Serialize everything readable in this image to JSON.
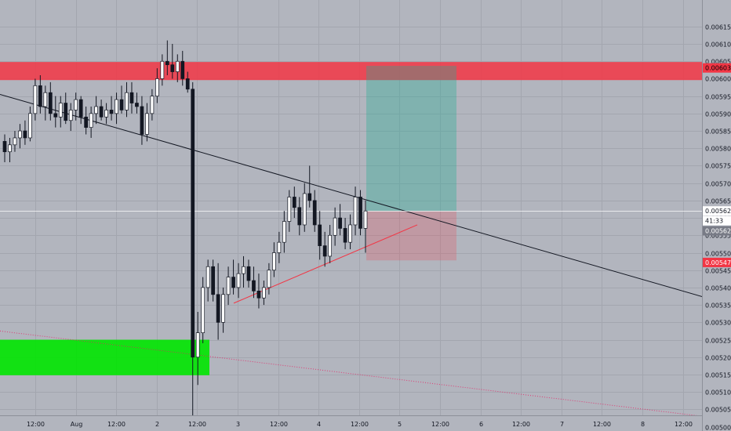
{
  "chart_data": {
    "type": "candlestick",
    "title": "",
    "y_axis": {
      "position": "right",
      "ylim": [
        0.00499,
        0.00618
      ],
      "ticks": [
        "0.006150",
        "0.006100",
        "0.006050",
        "0.006000",
        "0.005950",
        "0.005900",
        "0.005850",
        "0.005800",
        "0.005750",
        "0.005700",
        "0.005650",
        "0.005600",
        "0.005550",
        "0.005500",
        "0.005450",
        "0.005400",
        "0.005350",
        "0.005300",
        "0.005250",
        "0.005200",
        "0.005150",
        "0.005100",
        "0.005050",
        "0.005000"
      ]
    },
    "x_axis": {
      "ticks": [
        "12:00",
        "Aug",
        "12:00",
        "2",
        "12:00",
        "3",
        "12:00",
        "4",
        "12:00",
        "5",
        "12:00",
        "6",
        "12:00",
        "7",
        "12:00",
        "8",
        "12:00"
      ]
    },
    "price_tags": [
      {
        "value": "0.006031",
        "price": 0.006031,
        "color": "#f23645",
        "text_color": "#000000"
      },
      {
        "value": "0.005620",
        "price": 0.00562,
        "color": "#ffffff",
        "text_color": "#131722"
      },
      {
        "value": "41:33",
        "price": 0.005592,
        "color": "#ffffff",
        "text_color": "#131722"
      },
      {
        "value": "0.005620",
        "price": 0.005563,
        "color": "#787b86",
        "text_color": "#ffffff"
      },
      {
        "value": "0.005472",
        "price": 0.005472,
        "color": "#f23645",
        "text_color": "#ffffff"
      }
    ],
    "zones": [
      {
        "name": "resistance",
        "from": 0.005996,
        "to": 0.006048,
        "color": "#f23645"
      },
      {
        "name": "support",
        "from": 0.005148,
        "to": 0.00525,
        "color": "#00e600"
      }
    ],
    "position_tool": {
      "entry": 0.00562,
      "target": 0.006037,
      "stop": 0.005478
    },
    "trendlines": [
      {
        "name": "descending-trendline",
        "color": "#131722",
        "from": [
          0,
          0.005955
        ],
        "to": [
          932,
          0.00535
        ]
      },
      {
        "name": "ascending-trendline",
        "color": "#f23645",
        "from": [
          298,
          0.005355
        ],
        "to": [
          532,
          0.00558
        ]
      },
      {
        "name": "dotted-trendline",
        "color": "#e91e63",
        "from": [
          0,
          0.005275
        ],
        "to": [
          932,
          0.00502
        ]
      }
    ],
    "current_price": 0.00562,
    "candles": [
      {
        "t": 1,
        "o": 0.00582,
        "h": 0.00584,
        "l": 0.00576,
        "c": 0.00579
      },
      {
        "t": 2,
        "o": 0.00579,
        "h": 0.00583,
        "l": 0.00576,
        "c": 0.00581
      },
      {
        "t": 3,
        "o": 0.00581,
        "h": 0.00585,
        "l": 0.00579,
        "c": 0.00583
      },
      {
        "t": 4,
        "o": 0.00583,
        "h": 0.00587,
        "l": 0.0058,
        "c": 0.00585
      },
      {
        "t": 5,
        "o": 0.00585,
        "h": 0.00588,
        "l": 0.00581,
        "c": 0.00583
      },
      {
        "t": 6,
        "o": 0.00583,
        "h": 0.00592,
        "l": 0.00582,
        "c": 0.0059
      },
      {
        "t": 7,
        "o": 0.0059,
        "h": 0.006,
        "l": 0.00588,
        "c": 0.00598
      },
      {
        "t": 8,
        "o": 0.00598,
        "h": 0.00601,
        "l": 0.0059,
        "c": 0.00592
      },
      {
        "t": 9,
        "o": 0.00592,
        "h": 0.00598,
        "l": 0.00588,
        "c": 0.00596
      },
      {
        "t": 10,
        "o": 0.00596,
        "h": 0.00599,
        "l": 0.00588,
        "c": 0.0059
      },
      {
        "t": 11,
        "o": 0.0059,
        "h": 0.00595,
        "l": 0.00586,
        "c": 0.00589
      },
      {
        "t": 12,
        "o": 0.00589,
        "h": 0.00595,
        "l": 0.00586,
        "c": 0.00593
      },
      {
        "t": 13,
        "o": 0.00593,
        "h": 0.00596,
        "l": 0.00587,
        "c": 0.00588
      },
      {
        "t": 14,
        "o": 0.00588,
        "h": 0.00593,
        "l": 0.00585,
        "c": 0.00591
      },
      {
        "t": 15,
        "o": 0.00591,
        "h": 0.00596,
        "l": 0.00588,
        "c": 0.00594
      },
      {
        "t": 16,
        "o": 0.00594,
        "h": 0.00595,
        "l": 0.00587,
        "c": 0.00589
      },
      {
        "t": 17,
        "o": 0.00589,
        "h": 0.00592,
        "l": 0.00584,
        "c": 0.00586
      },
      {
        "t": 18,
        "o": 0.00586,
        "h": 0.00592,
        "l": 0.00583,
        "c": 0.0059
      },
      {
        "t": 19,
        "o": 0.0059,
        "h": 0.00595,
        "l": 0.00587,
        "c": 0.00592
      },
      {
        "t": 20,
        "o": 0.00592,
        "h": 0.00594,
        "l": 0.00588,
        "c": 0.00589
      },
      {
        "t": 21,
        "o": 0.00589,
        "h": 0.00593,
        "l": 0.00587,
        "c": 0.00591
      },
      {
        "t": 22,
        "o": 0.00591,
        "h": 0.00595,
        "l": 0.00588,
        "c": 0.0059
      },
      {
        "t": 23,
        "o": 0.0059,
        "h": 0.00596,
        "l": 0.00587,
        "c": 0.00594
      },
      {
        "t": 24,
        "o": 0.00594,
        "h": 0.00598,
        "l": 0.0059,
        "c": 0.00591
      },
      {
        "t": 25,
        "o": 0.00591,
        "h": 0.00599,
        "l": 0.00589,
        "c": 0.00596
      },
      {
        "t": 26,
        "o": 0.00596,
        "h": 0.00599,
        "l": 0.0059,
        "c": 0.00593
      },
      {
        "t": 27,
        "o": 0.00593,
        "h": 0.00596,
        "l": 0.0059,
        "c": 0.00592
      },
      {
        "t": 28,
        "o": 0.00592,
        "h": 0.00595,
        "l": 0.00581,
        "c": 0.00584
      },
      {
        "t": 29,
        "o": 0.00584,
        "h": 0.00593,
        "l": 0.00582,
        "c": 0.0059
      },
      {
        "t": 30,
        "o": 0.0059,
        "h": 0.00597,
        "l": 0.00588,
        "c": 0.00595
      },
      {
        "t": 31,
        "o": 0.00595,
        "h": 0.00603,
        "l": 0.00593,
        "c": 0.006
      },
      {
        "t": 32,
        "o": 0.006,
        "h": 0.00607,
        "l": 0.00598,
        "c": 0.00605
      },
      {
        "t": 33,
        "o": 0.00605,
        "h": 0.00611,
        "l": 0.00601,
        "c": 0.00604
      },
      {
        "t": 34,
        "o": 0.00604,
        "h": 0.0061,
        "l": 0.006,
        "c": 0.00602
      },
      {
        "t": 35,
        "o": 0.00602,
        "h": 0.00607,
        "l": 0.00599,
        "c": 0.00605
      },
      {
        "t": 36,
        "o": 0.00605,
        "h": 0.00608,
        "l": 0.00598,
        "c": 0.006
      },
      {
        "t": 37,
        "o": 0.006,
        "h": 0.00602,
        "l": 0.00596,
        "c": 0.00597
      },
      {
        "t": 38,
        "o": 0.00597,
        "h": 0.00599,
        "l": 0.005,
        "c": 0.0052
      },
      {
        "t": 39,
        "o": 0.0052,
        "h": 0.00533,
        "l": 0.00512,
        "c": 0.00527
      },
      {
        "t": 40,
        "o": 0.00527,
        "h": 0.00543,
        "l": 0.00524,
        "c": 0.0054
      },
      {
        "t": 41,
        "o": 0.0054,
        "h": 0.00548,
        "l": 0.00536,
        "c": 0.00546
      },
      {
        "t": 42,
        "o": 0.00546,
        "h": 0.00548,
        "l": 0.00536,
        "c": 0.00538
      },
      {
        "t": 43,
        "o": 0.00538,
        "h": 0.00547,
        "l": 0.00525,
        "c": 0.0053
      },
      {
        "t": 44,
        "o": 0.0053,
        "h": 0.0054,
        "l": 0.00527,
        "c": 0.00538
      },
      {
        "t": 45,
        "o": 0.00538,
        "h": 0.00546,
        "l": 0.00535,
        "c": 0.00543
      },
      {
        "t": 46,
        "o": 0.00543,
        "h": 0.00548,
        "l": 0.00538,
        "c": 0.0054
      },
      {
        "t": 47,
        "o": 0.0054,
        "h": 0.00547,
        "l": 0.00537,
        "c": 0.00544
      },
      {
        "t": 48,
        "o": 0.00544,
        "h": 0.00549,
        "l": 0.0054,
        "c": 0.00546
      },
      {
        "t": 49,
        "o": 0.00546,
        "h": 0.00548,
        "l": 0.0054,
        "c": 0.00542
      },
      {
        "t": 50,
        "o": 0.00542,
        "h": 0.00546,
        "l": 0.00537,
        "c": 0.00539
      },
      {
        "t": 51,
        "o": 0.00539,
        "h": 0.00544,
        "l": 0.00534,
        "c": 0.00537
      },
      {
        "t": 52,
        "o": 0.00537,
        "h": 0.00542,
        "l": 0.00535,
        "c": 0.0054
      },
      {
        "t": 53,
        "o": 0.0054,
        "h": 0.00547,
        "l": 0.00538,
        "c": 0.00545
      },
      {
        "t": 54,
        "o": 0.00545,
        "h": 0.00553,
        "l": 0.00543,
        "c": 0.0055
      },
      {
        "t": 55,
        "o": 0.0055,
        "h": 0.00556,
        "l": 0.00547,
        "c": 0.00553
      },
      {
        "t": 56,
        "o": 0.00553,
        "h": 0.00562,
        "l": 0.0055,
        "c": 0.00559
      },
      {
        "t": 57,
        "o": 0.00559,
        "h": 0.00568,
        "l": 0.00556,
        "c": 0.00566
      },
      {
        "t": 58,
        "o": 0.00566,
        "h": 0.00569,
        "l": 0.0056,
        "c": 0.00563
      },
      {
        "t": 59,
        "o": 0.00563,
        "h": 0.00566,
        "l": 0.00555,
        "c": 0.00558
      },
      {
        "t": 60,
        "o": 0.00558,
        "h": 0.0057,
        "l": 0.00556,
        "c": 0.00567
      },
      {
        "t": 61,
        "o": 0.00567,
        "h": 0.00575,
        "l": 0.00563,
        "c": 0.00565
      },
      {
        "t": 62,
        "o": 0.00565,
        "h": 0.00568,
        "l": 0.00556,
        "c": 0.00558
      },
      {
        "t": 63,
        "o": 0.00558,
        "h": 0.00562,
        "l": 0.00548,
        "c": 0.00552
      },
      {
        "t": 64,
        "o": 0.00552,
        "h": 0.00556,
        "l": 0.00546,
        "c": 0.00549
      },
      {
        "t": 65,
        "o": 0.00549,
        "h": 0.00558,
        "l": 0.00547,
        "c": 0.00555
      },
      {
        "t": 66,
        "o": 0.00555,
        "h": 0.00563,
        "l": 0.00552,
        "c": 0.0056
      },
      {
        "t": 67,
        "o": 0.0056,
        "h": 0.00564,
        "l": 0.00555,
        "c": 0.00557
      },
      {
        "t": 68,
        "o": 0.00557,
        "h": 0.0056,
        "l": 0.00551,
        "c": 0.00553
      },
      {
        "t": 69,
        "o": 0.00553,
        "h": 0.00561,
        "l": 0.00551,
        "c": 0.00558
      },
      {
        "t": 70,
        "o": 0.00558,
        "h": 0.00569,
        "l": 0.00555,
        "c": 0.00566
      },
      {
        "t": 71,
        "o": 0.00566,
        "h": 0.00568,
        "l": 0.00555,
        "c": 0.00557
      },
      {
        "t": 72,
        "o": 0.00557,
        "h": 0.00565,
        "l": 0.0055,
        "c": 0.00562
      }
    ]
  }
}
